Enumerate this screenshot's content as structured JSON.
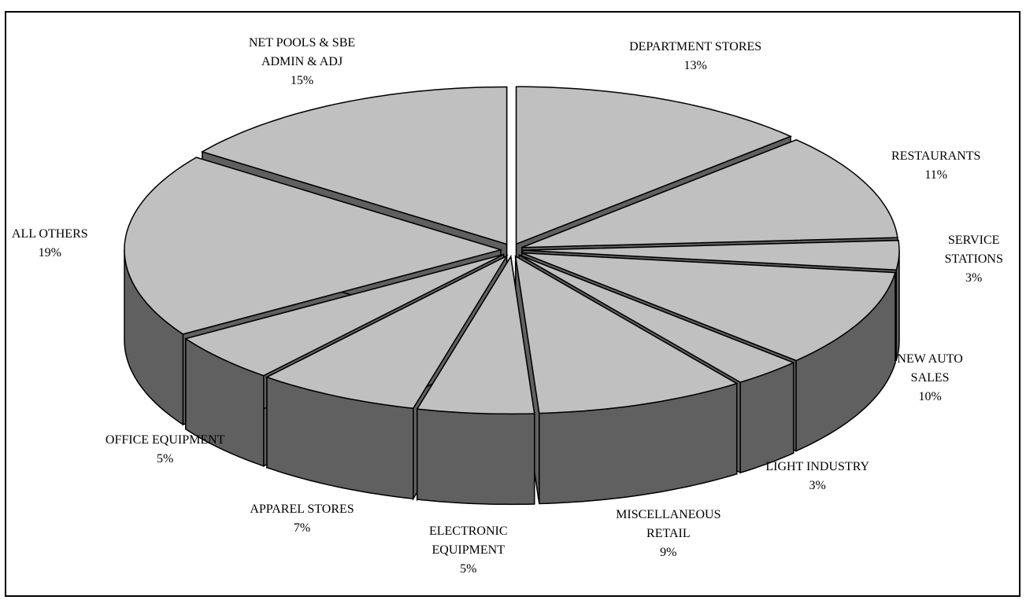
{
  "chart_data": {
    "type": "pie3d",
    "categories": [
      "DEPARTMENT STORES",
      "RESTAURANTS",
      "SERVICE\nSTATIONS",
      "NEW AUTO\nSALES",
      "LIGHT INDUSTRY",
      "MISCELLANEOUS\nRETAIL",
      "ELECTRONIC\nEQUIPMENT",
      "APPAREL STORES",
      "OFFICE EQUIPMENT",
      "ALL OTHERS",
      "NET POOLS & SBE\nADMIN & ADJ"
    ],
    "values": [
      13,
      11,
      3,
      10,
      3,
      9,
      5,
      7,
      5,
      19,
      15
    ],
    "value_labels": [
      "13%",
      "11%",
      "3%",
      "10%",
      "3%",
      "9%",
      "5%",
      "7%",
      "5%",
      "19%",
      "15%"
    ],
    "color": "#c0c0c0",
    "side_color": "#606060"
  }
}
